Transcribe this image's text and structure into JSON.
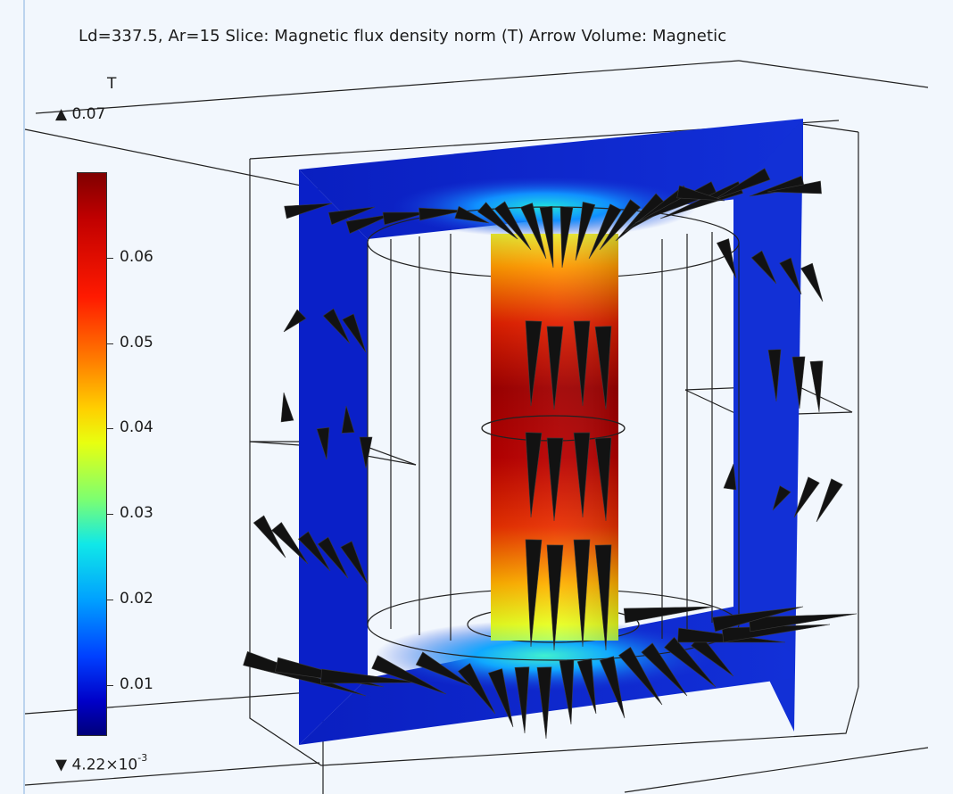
{
  "plot": {
    "title": "Ld=337.5, Ar=15   Slice: Magnetic flux density norm (T)  Arrow Volume: Magnetic"
  },
  "colorbar": {
    "unit": "T",
    "max_label": "▲ 0.07",
    "min_label_base": "▼ 4.22×10",
    "min_label_exp": "-3",
    "ticks": [
      "0.06",
      "0.05",
      "0.04",
      "0.03",
      "0.02",
      "0.01"
    ],
    "max_value": 0.07,
    "min_value": 0.00422,
    "colormap": "rainbow"
  },
  "scene": {
    "description_colors": {
      "core_hot": "#b00000",
      "yoke": "#1428c8",
      "arrows": "#111111"
    }
  }
}
